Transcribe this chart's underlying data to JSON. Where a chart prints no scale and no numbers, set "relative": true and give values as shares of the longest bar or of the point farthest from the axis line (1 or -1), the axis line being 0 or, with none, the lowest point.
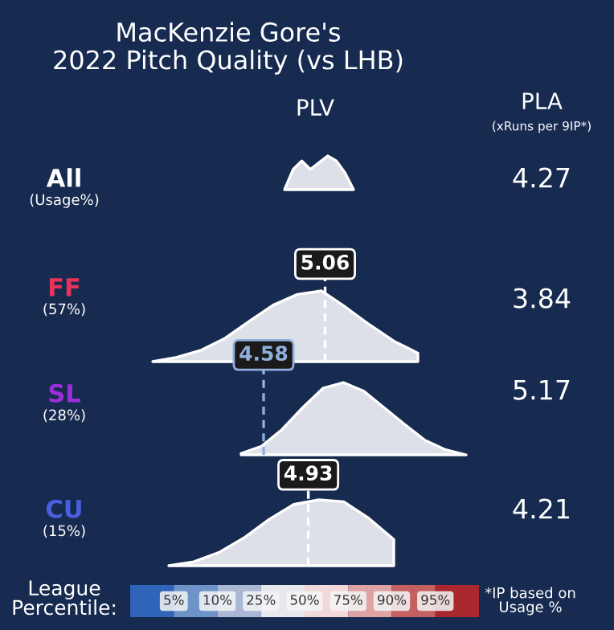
{
  "chart_data": [
    {
      "type": "other",
      "title": "MacKenzie Gore's\n2022 Pitch Quality (vs LHB)",
      "annotations": [
        "PLV",
        "PLA",
        "(xRuns per 9IP*)",
        "League\nPercentile:",
        "5%",
        "10%",
        "25%",
        "50%",
        "75%",
        "90%",
        "95%",
        "*IP based on\nUsage %"
      ]
    },
    {
      "type": "area",
      "relative": true,
      "categories": [
        null,
        null,
        null,
        null,
        null,
        null,
        null,
        null,
        null
      ],
      "series": [
        {
          "color": "#dde0e8",
          "values": [
            0,
            0.6,
            0.85,
            0.6,
            0.8,
            1.0,
            0.85,
            0.5,
            0
          ]
        }
      ],
      "annotations": [
        "All",
        "(Usage%)",
        "4.27"
      ]
    },
    {
      "type": "area",
      "relative": true,
      "categories": [
        null,
        null,
        null,
        null,
        null,
        null,
        null,
        null,
        null,
        null,
        null,
        null
      ],
      "series": [
        {
          "color": "#dde0e8",
          "values": [
            0,
            0.06,
            0.16,
            0.33,
            0.57,
            0.8,
            0.95,
            1.0,
            0.77,
            0.52,
            0.29,
            0.12
          ]
        }
      ],
      "annotations": [
        "FF",
        "(57%)",
        "3.84",
        "5.06"
      ]
    },
    {
      "type": "area",
      "relative": true,
      "categories": [
        null,
        null,
        null,
        null,
        null,
        null,
        null,
        null,
        null,
        null,
        null,
        null
      ],
      "series": [
        {
          "color": "#dde0e8",
          "values": [
            0.02,
            0.12,
            0.35,
            0.65,
            0.92,
            1.0,
            0.88,
            0.65,
            0.42,
            0.2,
            0.07,
            0
          ]
        }
      ],
      "annotations": [
        "SL",
        "(28%)",
        "5.17",
        "4.58"
      ]
    },
    {
      "type": "area",
      "relative": true,
      "categories": [
        null,
        null,
        null,
        null,
        null,
        null,
        null,
        null,
        null,
        null
      ],
      "series": [
        {
          "color": "#dde0e8",
          "values": [
            0,
            0.06,
            0.2,
            0.42,
            0.7,
            0.93,
            1.0,
            0.97,
            0.72,
            0.4
          ]
        }
      ],
      "annotations": [
        "CU",
        "(15%)",
        "4.21",
        "4.93"
      ]
    }
  ]
}
